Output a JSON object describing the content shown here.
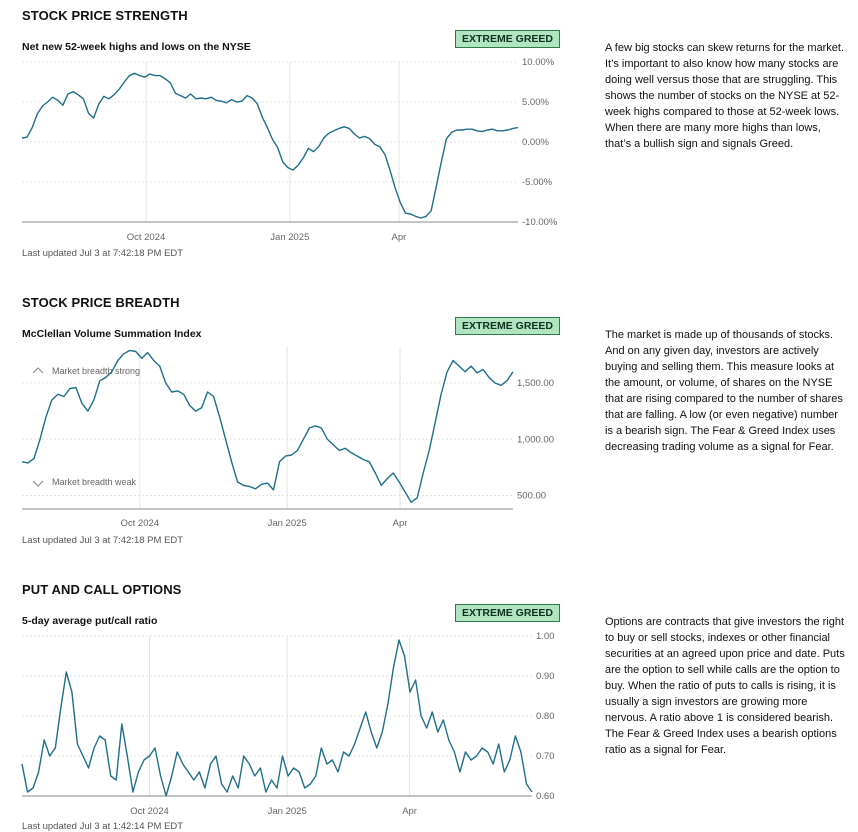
{
  "sections": [
    {
      "title": "STOCK PRICE STRENGTH",
      "chart_title": "Net new 52-week highs and lows on the NYSE",
      "rating": "EXTREME GREED",
      "updated": "Last updated Jul 3 at 7:42:18 PM EDT",
      "description": "A few big stocks can skew returns for the market. It’s important to also know how many stocks are doing well versus those that are struggling. This shows the number of stocks on the NYSE at 52-week highs compared to those at 52-week lows. When there are many more highs than lows, that’s a bullish sign and signals Greed.",
      "colors": {
        "line": "#1f6e8c",
        "grid": "#e3e3e3",
        "axis": "#888888"
      }
    },
    {
      "title": "STOCK PRICE BREADTH",
      "chart_title": "McClellan Volume Summation Index",
      "rating": "EXTREME GREED",
      "updated": "Last updated Jul 3 at 7:42:18 PM EDT",
      "description": "The market is made up of thousands of stocks. And on any given day, investors are actively buying and selling them. This measure looks at the amount, or volume, of shares on the NYSE that are rising compared to the number of shares that are falling. A low (or even negative) number is a bearish sign. The Fear & Greed Index uses decreasing trading volume as a signal for Fear.",
      "colors": {
        "line": "#1f6e8c",
        "grid": "#e3e3e3",
        "axis": "#888888"
      }
    },
    {
      "title": "PUT AND CALL OPTIONS",
      "chart_title": "5-day average put/call ratio",
      "rating": "EXTREME GREED",
      "updated": "Last updated Jul 3 at 1:42:14 PM EDT",
      "description": "Options are contracts that give investors the right to buy or sell stocks, indexes or other financial securities at an agreed upon price and date. Puts are the option to sell while calls are the option to buy. When the ratio of puts to calls is rising, it is usually a sign investors are growing more nervous. A ratio above 1 is considered bearish. The Fear & Greed Index uses a bearish options ratio as a signal for Fear.",
      "colors": {
        "line": "#1f6e8c",
        "grid": "#e3e3e3",
        "axis": "#888888"
      }
    }
  ],
  "chart_data": [
    {
      "type": "line",
      "x_labels": [
        "Oct 2024",
        "Jan 2025",
        "Apr"
      ],
      "x_label_positions": [
        0.25,
        0.54,
        0.76
      ],
      "y_ticks": [
        10,
        5,
        0,
        -5,
        -10
      ],
      "y_tick_labels": [
        "10.00%",
        "5.00%",
        "0.00%",
        "-5.00%",
        "-10.00%"
      ],
      "ylim": [
        -10,
        10
      ],
      "grid": true,
      "series": [
        {
          "values": [
            0.5,
            0.6,
            1.8,
            3.5,
            4.5,
            5.0,
            5.6,
            5.2,
            4.6,
            6.0,
            6.3,
            5.9,
            5.4,
            3.6,
            3.0,
            4.7,
            5.7,
            5.4,
            5.9,
            6.6,
            7.5,
            8.3,
            8.6,
            8.3,
            8.1,
            8.5,
            8.3,
            8.3,
            7.9,
            7.4,
            6.1,
            5.8,
            5.5,
            6.0,
            5.4,
            5.5,
            5.4,
            5.6,
            5.2,
            5.1,
            4.9,
            5.3,
            5.0,
            5.1,
            5.8,
            5.5,
            4.8,
            3.1,
            1.8,
            0.3,
            -0.7,
            -2.5,
            -3.2,
            -3.5,
            -2.9,
            -2.0,
            -0.8,
            -1.2,
            -0.6,
            0.5,
            1.1,
            1.4,
            1.7,
            1.9,
            1.7,
            1.0,
            0.5,
            0.7,
            0.4,
            -0.3,
            -0.6,
            -1.6,
            -3.6,
            -5.8,
            -7.6,
            -8.9,
            -9.0,
            -9.3,
            -9.5,
            -9.3,
            -8.6,
            -5.6,
            -2.5,
            0.4,
            1.2,
            1.5,
            1.5,
            1.6,
            1.6,
            1.4,
            1.3,
            1.5,
            1.6,
            1.4,
            1.4,
            1.5,
            1.7,
            1.8
          ]
        }
      ]
    },
    {
      "type": "line",
      "x_labels": [
        "Oct 2024",
        "Jan 2025",
        "Apr"
      ],
      "x_label_positions": [
        0.24,
        0.54,
        0.77
      ],
      "y_ticks": [
        1500,
        1000,
        500
      ],
      "y_tick_labels": [
        "1,500.00",
        "1,000.00",
        "500.00"
      ],
      "ylim": [
        380,
        1820
      ],
      "grid": true,
      "annotations": [
        "Market breadth strong",
        "Market breadth weak"
      ],
      "series": [
        {
          "values": [
            800,
            790,
            830,
            1000,
            1200,
            1350,
            1400,
            1380,
            1450,
            1460,
            1320,
            1250,
            1350,
            1520,
            1550,
            1600,
            1700,
            1760,
            1790,
            1780,
            1720,
            1770,
            1700,
            1650,
            1500,
            1420,
            1430,
            1400,
            1300,
            1250,
            1280,
            1420,
            1380,
            1200,
            1000,
            800,
            620,
            590,
            580,
            560,
            600,
            610,
            550,
            800,
            850,
            860,
            900,
            1000,
            1100,
            1120,
            1100,
            1000,
            950,
            900,
            920,
            880,
            850,
            820,
            800,
            700,
            590,
            650,
            700,
            620,
            530,
            440,
            480,
            700,
            900,
            1150,
            1400,
            1600,
            1700,
            1650,
            1600,
            1650,
            1590,
            1620,
            1550,
            1500,
            1480,
            1520,
            1600
          ]
        }
      ]
    },
    {
      "type": "line",
      "x_labels": [
        "Oct 2024",
        "Jan 2025",
        "Apr"
      ],
      "x_label_positions": [
        0.25,
        0.52,
        0.76
      ],
      "y_ticks": [
        1.0,
        0.9,
        0.8,
        0.7,
        0.6
      ],
      "y_tick_labels": [
        "1.00",
        "0.90",
        "0.80",
        "0.70",
        "0.60"
      ],
      "ylim": [
        0.6,
        1.0
      ],
      "grid": true,
      "series": [
        {
          "values": [
            0.68,
            0.61,
            0.62,
            0.66,
            0.74,
            0.7,
            0.72,
            0.82,
            0.91,
            0.86,
            0.73,
            0.7,
            0.67,
            0.72,
            0.75,
            0.74,
            0.65,
            0.64,
            0.78,
            0.7,
            0.61,
            0.66,
            0.69,
            0.7,
            0.72,
            0.65,
            0.6,
            0.65,
            0.71,
            0.68,
            0.66,
            0.64,
            0.66,
            0.62,
            0.68,
            0.7,
            0.63,
            0.61,
            0.65,
            0.62,
            0.7,
            0.68,
            0.65,
            0.67,
            0.61,
            0.64,
            0.62,
            0.7,
            0.65,
            0.67,
            0.66,
            0.62,
            0.63,
            0.65,
            0.72,
            0.68,
            0.69,
            0.66,
            0.71,
            0.7,
            0.73,
            0.77,
            0.81,
            0.76,
            0.72,
            0.76,
            0.83,
            0.92,
            0.99,
            0.95,
            0.86,
            0.89,
            0.8,
            0.77,
            0.81,
            0.76,
            0.79,
            0.74,
            0.71,
            0.66,
            0.71,
            0.69,
            0.7,
            0.72,
            0.71,
            0.68,
            0.73,
            0.66,
            0.69,
            0.75,
            0.71,
            0.63,
            0.61
          ]
        }
      ]
    }
  ]
}
